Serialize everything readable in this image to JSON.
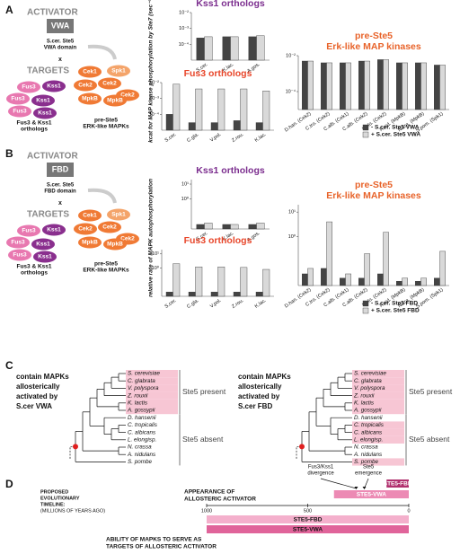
{
  "chart_data": [
    {
      "type": "bar",
      "title": [
        "Kss1 orthologs"
      ],
      "title_color": "#7b2d8e",
      "log": true,
      "categories": [
        "S.cer.",
        "K.lac.",
        "A.gos."
      ],
      "series": [
        {
          "color": "#444444",
          "values": [
            0.00025,
            0.0003,
            0.0003
          ]
        },
        {
          "color": "#d9d9d9",
          "values": [
            0.0003,
            0.0003,
            0.00035
          ]
        }
      ],
      "ylim": [
        1e-05,
        0.01
      ],
      "yticks": [
        {
          "value": 0.01,
          "label": "10⁻²"
        },
        {
          "value": 0.001,
          "label": "10⁻³"
        },
        {
          "value": 0.0001,
          "label": "10⁻⁴"
        }
      ]
    },
    {
      "type": "bar",
      "title": [
        "Fus3 orthologs"
      ],
      "title_color": "#e8462a",
      "log": true,
      "categories": [
        "S.cer.",
        "C.gla.",
        "V.pol.",
        "Z.rou.",
        "K.lac."
      ],
      "series": [
        {
          "color": "#444444",
          "values": [
            0.0001,
            3e-05,
            3e-05,
            4e-05,
            3e-05
          ]
        },
        {
          "color": "#d9d9d9",
          "values": [
            0.008,
            0.004,
            0.004,
            0.004,
            0.003
          ]
        }
      ],
      "ylim": [
        1e-05,
        0.01
      ],
      "yticks": [
        {
          "value": 0.01,
          "label": "10⁻²"
        },
        {
          "value": 0.001,
          "label": "10⁻³"
        },
        {
          "value": 0.0001,
          "label": "10⁻⁴"
        }
      ]
    },
    {
      "type": "bar",
      "title": [
        "pre-Ste5",
        "Erk-like MAP kinases"
      ],
      "title_color": "#e8632a",
      "log": true,
      "legend": true,
      "categories": [
        "D.han. (Cek2)",
        "C.tro. (Cek2)",
        "C.alb. (Cek1)",
        "C.alb. (Cek2)",
        "L.elo. (Cek2)",
        "A.nid. (MpkB)",
        "N.cra. (MpkB)",
        "S.pom. (Spk1)"
      ],
      "series": [
        {
          "name": "- S.cer. Ste5 VWA",
          "color": "#444444",
          "values": [
            0.005,
            0.004,
            0.004,
            0.005,
            0.006,
            0.004,
            0.004,
            0.003
          ]
        },
        {
          "name": "+ S.cer. Ste5 VWA",
          "color": "#d9d9d9",
          "values": [
            0.005,
            0.004,
            0.004,
            0.005,
            0.006,
            0.004,
            0.004,
            0.003
          ]
        }
      ],
      "ylim": [
        1e-05,
        0.01
      ],
      "yticks": [
        {
          "value": 0.01,
          "label": "10⁻²"
        },
        {
          "value": 0.0001,
          "label": "10⁻⁴"
        }
      ]
    },
    {
      "type": "bar",
      "title": [
        "Kss1 orthologs"
      ],
      "title_color": "#7b2d8e",
      "log": true,
      "categories": [
        "S.cer.",
        "K.lac.",
        "A.gos."
      ],
      "series": [
        {
          "color": "#444444",
          "values": [
            0.02,
            0.02,
            0.02
          ]
        },
        {
          "color": "#d9d9d9",
          "values": [
            0.025,
            0.02,
            0.025
          ]
        }
      ],
      "ylim": [
        0.01,
        20
      ],
      "yticks": [
        {
          "value": 10,
          "label": "10¹"
        },
        {
          "value": 1,
          "label": "10⁰"
        }
      ]
    },
    {
      "type": "bar",
      "title": [
        "Fus3 orthologs"
      ],
      "title_color": "#e8462a",
      "log": true,
      "categories": [
        "S.cer.",
        "C.gla.",
        "V.pol.",
        "Z.rou.",
        "K.lac."
      ],
      "series": [
        {
          "color": "#444444",
          "values": [
            0.02,
            0.02,
            0.02,
            0.02,
            0.02
          ]
        },
        {
          "color": "#d9d9d9",
          "values": [
            2,
            1.2,
            1.2,
            1.1,
            0.8
          ]
        }
      ],
      "ylim": [
        0.01,
        20
      ],
      "yticks": [
        {
          "value": 10,
          "label": "10¹"
        },
        {
          "value": 1,
          "label": "10⁰"
        }
      ]
    },
    {
      "type": "bar",
      "title": [
        "pre-Ste5",
        "Erk-like MAP kinases"
      ],
      "title_color": "#e8632a",
      "log": true,
      "legend": true,
      "categories": [
        "D.han. (Cek2)",
        "C.tro. (Cek2)",
        "C.alb. (Cek1)",
        "C.alb. (Cek2)",
        "L.elo. (Cek2)",
        "A.nid. (MpkB)",
        "N.cra. (MpkB)",
        "S.pom. (Spk1)"
      ],
      "series": [
        {
          "name": "- S.cer. Ste5 FBD",
          "color": "#444444",
          "values": [
            0.03,
            0.05,
            0.02,
            0.02,
            0.03,
            0.015,
            0.015,
            0.02
          ]
        },
        {
          "name": "+ S.cer. Ste5 FBD",
          "color": "#d9d9d9",
          "values": [
            0.05,
            4,
            0.03,
            0.2,
            1.5,
            0.02,
            0.02,
            0.25
          ]
        }
      ],
      "ylim": [
        0.01,
        20
      ],
      "yticks": [
        {
          "value": 10,
          "label": "10¹"
        },
        {
          "value": 1,
          "label": "10⁰"
        }
      ]
    }
  ],
  "panels": [
    {
      "label": "A",
      "activator": "ACTIVATOR",
      "domain_box": "VWA",
      "domain_lines": [
        "S.cer. Ste5",
        "VWA domain"
      ],
      "times": "x",
      "targets": "TARGETS",
      "fus3_kss1_nodes": [
        "Fus3",
        "Kss1",
        "Fus3",
        "Kss1",
        "Fus3",
        "Kss1"
      ],
      "fus3_kss1_caption": [
        "Fus3 & Kss1",
        "orthologs"
      ],
      "erk_nodes": [
        "Cek1",
        "Spk1",
        "Cek2",
        "Cek2",
        "Cek2",
        "MpkB",
        "MpkB"
      ],
      "erk_caption": [
        "pre-Ste5",
        "ERK-like MAPKs"
      ],
      "ylabel": "kcat for MAP kinase phosphorylation by Ste7 (sec⁻¹)"
    },
    {
      "label": "B",
      "activator": "ACTIVATOR",
      "domain_box": "FBD",
      "domain_lines": [
        "S.cer. Ste5",
        "FBD domain"
      ],
      "times": "x",
      "targets": "TARGETS",
      "fus3_kss1_nodes": [
        "Fus3",
        "Kss1",
        "Fus3",
        "Kss1",
        "Fus3",
        "Kss1"
      ],
      "fus3_kss1_caption": [
        "Fus3 & Kss1",
        "orthologs"
      ],
      "erk_nodes": [
        "Cek1",
        "Spk1",
        "Cek2",
        "Cek2",
        "Cek2",
        "MpkB",
        "MpkB"
      ],
      "erk_caption": [
        "pre-Ste5",
        "ERK-like MAPKs"
      ],
      "ylabel": "relative rate of MAPK autophosphorylation"
    }
  ],
  "panel_c": {
    "label": "C",
    "trees": [
      {
        "caption_lines": [
          "contain MAPKs",
          "allosterically",
          "activated by",
          "S.cer VWA"
        ],
        "species": [
          "S. cerevisiae",
          "C. glabrata",
          "V. polyspora",
          "Z. rouxii",
          "K. lactis",
          "A. gossypii",
          "D. hansenii",
          "C. tropicalis",
          "C. albicans",
          "L. elongisp.",
          "N. crassa",
          "A. nidulans",
          "S. pombe"
        ],
        "highlight": [
          true,
          true,
          true,
          true,
          true,
          true,
          false,
          false,
          false,
          false,
          false,
          false,
          false
        ],
        "groups": [
          "Ste5 present",
          "Ste5 absent"
        ]
      },
      {
        "caption_lines": [
          "contain MAPKs",
          "allosterically",
          "activated by",
          "S.cer FBD"
        ],
        "species": [
          "S. cerevisiae",
          "C. glabrata",
          "V. polyspora",
          "Z. rouxii",
          "K. lactis",
          "A. gossypii",
          "D. hansenii",
          "C. tropicalis",
          "C. albicans",
          "L. elongisp.",
          "N. crassa",
          "A. nidulans",
          "S. pombe"
        ],
        "highlight": [
          true,
          true,
          true,
          true,
          true,
          true,
          false,
          true,
          true,
          true,
          false,
          false,
          true
        ],
        "groups": [
          "Ste5 present",
          "Ste5 absent"
        ]
      }
    ]
  },
  "panel_d": {
    "label": "D",
    "timeline_lines": [
      "PROPOSED",
      "EVOLUTIONARY",
      "TIMELINE:"
    ],
    "units": "(MILLIONS OF YEARS AGO)",
    "top_caption": [
      "APPEARANCE OF",
      "ALLOSTERIC ACTIVATOR"
    ],
    "bottom_caption": [
      "ABILITY OF MAPKS TO SERVE AS",
      "TARGETS OF ALLOSTERIC ACTIVATOR"
    ],
    "events": [
      {
        "lines": [
          "Fus3/Kss1",
          "divergence"
        ],
        "at": 260
      },
      {
        "lines": [
          "Ste5",
          "emergence"
        ],
        "at": 220
      }
    ],
    "xlim": [
      1000,
      0
    ],
    "xticks": [
      1000,
      500,
      0
    ],
    "bars": [
      {
        "name": "STE5-FBD",
        "start": 110,
        "end": 0,
        "color": "#b0306e"
      },
      {
        "name": "STE5-VWA",
        "start": 370,
        "end": 0,
        "color": "#ec8ab4"
      },
      {
        "name": "STE5-FBD",
        "start": 1000,
        "end": 0,
        "color": "#f4b0cc"
      },
      {
        "name": "STE5-VWA",
        "start": 1000,
        "end": 0,
        "color": "#e0649a"
      }
    ]
  }
}
